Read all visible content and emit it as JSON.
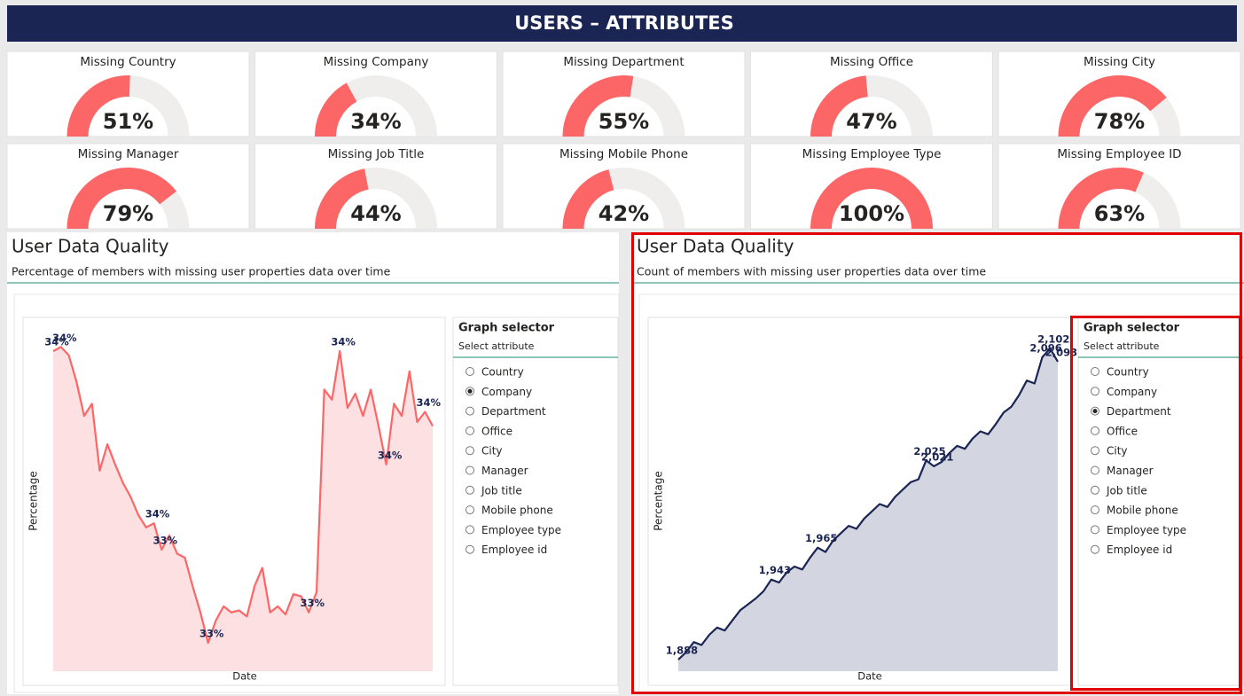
{
  "header": {
    "title": "USERS – ATTRIBUTES"
  },
  "gauges": [
    {
      "label": "Missing Country",
      "value": 51,
      "value_label": "51%"
    },
    {
      "label": "Missing Company",
      "value": 34,
      "value_label": "34%"
    },
    {
      "label": "Missing Department",
      "value": 55,
      "value_label": "55%"
    },
    {
      "label": "Missing Office",
      "value": 47,
      "value_label": "47%"
    },
    {
      "label": "Missing City",
      "value": 78,
      "value_label": "78%"
    },
    {
      "label": "Missing Manager",
      "value": 79,
      "value_label": "79%"
    },
    {
      "label": "Missing Job Title",
      "value": 44,
      "value_label": "44%"
    },
    {
      "label": "Missing Mobile Phone",
      "value": 42,
      "value_label": "42%"
    },
    {
      "label": "Missing Employee Type",
      "value": 100,
      "value_label": "100%"
    },
    {
      "label": "Missing Employee ID",
      "value": 63,
      "value_label": "63%"
    }
  ],
  "panels": [
    {
      "title": "User Data Quality",
      "subtitle": "Percentage of members with missing user properties data over time",
      "chart": {
        "type": "area",
        "x_label": "Date",
        "y_label": "Percentage",
        "color": "#fd6666",
        "fill": "#fde0e1",
        "ylim": [
          32.85,
          34.5
        ],
        "values": [
          34.43,
          34.45,
          34.41,
          34.28,
          34.11,
          34.17,
          33.84,
          33.97,
          33.87,
          33.78,
          33.71,
          33.62,
          33.56,
          33.58,
          33.45,
          33.52,
          33.43,
          33.41,
          33.27,
          33.14,
          32.99,
          33.1,
          33.17,
          33.14,
          33.15,
          33.12,
          33.27,
          33.36,
          33.14,
          33.17,
          33.13,
          33.23,
          33.22,
          33.14,
          33.24,
          34.24,
          34.19,
          34.43,
          34.15,
          34.22,
          34.11,
          34.24,
          34.06,
          33.87,
          34.17,
          34.11,
          34.33,
          34.08,
          34.13,
          34.06
        ],
        "value_labels": [
          "34%",
          "34%",
          null,
          null,
          null,
          null,
          null,
          null,
          null,
          null,
          null,
          null,
          null,
          "34%",
          "33%",
          null,
          null,
          null,
          null,
          null,
          "33%",
          null,
          null,
          null,
          null,
          null,
          null,
          null,
          null,
          null,
          null,
          null,
          null,
          "33%",
          null,
          null,
          null,
          "34%",
          null,
          null,
          null,
          null,
          null,
          "34%",
          null,
          null,
          null,
          null,
          "34%",
          null
        ]
      },
      "selector": {
        "title": "Graph selector",
        "subtitle": "Select attribute",
        "options": [
          "Country",
          "Company",
          "Department",
          "Office",
          "City",
          "Manager",
          "Job title",
          "Mobile phone",
          "Employee type",
          "Employee id"
        ],
        "selected": 1
      }
    },
    {
      "title": "User Data Quality",
      "subtitle": "Count of members with missing user properties data over time",
      "chart": {
        "type": "area",
        "x_label": "Date",
        "y_label": "Percentage",
        "color": "#1b2553",
        "fill": "#d3d6e0",
        "ylim": [
          1880,
          2110
        ],
        "values": [
          1888,
          1893,
          1900,
          1898,
          1905,
          1910,
          1908,
          1915,
          1922,
          1926,
          1930,
          1935,
          1943,
          1941,
          1948,
          1952,
          1950,
          1958,
          1965,
          1962,
          1970,
          1975,
          1980,
          1978,
          1985,
          1990,
          1995,
          1993,
          2000,
          2005,
          2010,
          2012,
          2025,
          2021,
          2024,
          2030,
          2035,
          2033,
          2040,
          2045,
          2043,
          2050,
          2058,
          2062,
          2070,
          2080,
          2078,
          2096,
          2102,
          2093
        ],
        "value_labels": [
          "1,888",
          null,
          null,
          null,
          null,
          null,
          null,
          null,
          null,
          null,
          null,
          null,
          "1,943",
          null,
          null,
          null,
          null,
          null,
          "1,965",
          null,
          null,
          null,
          null,
          null,
          null,
          null,
          null,
          null,
          null,
          null,
          null,
          null,
          "2,025",
          "2,021",
          null,
          null,
          null,
          null,
          null,
          null,
          null,
          null,
          null,
          null,
          null,
          null,
          null,
          "2,096",
          "2,102",
          "2,093"
        ]
      },
      "selector": {
        "title": "Graph selector",
        "subtitle": "Select attribute",
        "options": [
          "Country",
          "Company",
          "Department",
          "Office",
          "City",
          "Manager",
          "Job title",
          "Mobile phone",
          "Employee type",
          "Employee id"
        ],
        "selected": 2
      }
    }
  ]
}
